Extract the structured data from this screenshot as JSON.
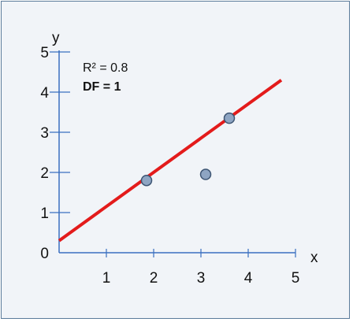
{
  "chart_data": {
    "type": "scatter",
    "title": "",
    "xlabel": "x",
    "ylabel": "y",
    "xlim": [
      0,
      5
    ],
    "ylim": [
      0,
      5
    ],
    "x_ticks": [
      "1",
      "2",
      "3",
      "4",
      "5"
    ],
    "y_ticks": [
      "0",
      "1",
      "2",
      "3",
      "4",
      "5"
    ],
    "grid": false,
    "points": [
      {
        "x": 1.85,
        "y": 1.8
      },
      {
        "x": 3.1,
        "y": 1.95
      },
      {
        "x": 3.6,
        "y": 3.35
      }
    ],
    "fit_line": {
      "x0": 0.0,
      "y0": 0.3,
      "x1": 4.7,
      "y1": 4.3
    },
    "annotations": {
      "r_squared": "R² = 0.8",
      "df": "DF = 1"
    },
    "colors": {
      "fit_line": "#e31b1b",
      "point_fill": "#8ea5c3",
      "point_stroke": "#3d5573",
      "axis": "#3a6fc0",
      "background": "#f1f4f8",
      "frame_border": "#5b7b9a"
    }
  }
}
